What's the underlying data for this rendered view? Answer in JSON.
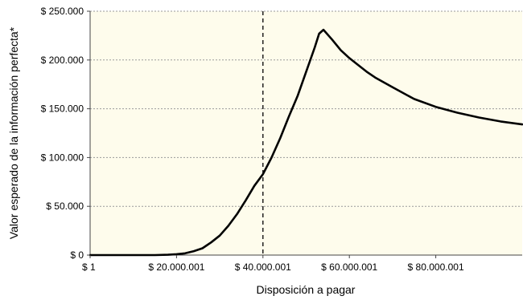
{
  "chart_data": {
    "type": "line",
    "title": "",
    "xlabel": "Disposición a pagar",
    "ylabel": "Valor esperado de la información perfecta*",
    "xlim": [
      1,
      100000001
    ],
    "ylim": [
      0,
      250000
    ],
    "grid": {
      "horizontal": true,
      "vertical": false
    },
    "x_ticks": [
      {
        "value": 1,
        "label": "$ 1"
      },
      {
        "value": 20000001,
        "label": "$ 20.000.001"
      },
      {
        "value": 40000001,
        "label": "$ 40.000.001"
      },
      {
        "value": 60000001,
        "label": "$ 60.000.001"
      },
      {
        "value": 80000001,
        "label": "$ 80.000.001"
      }
    ],
    "y_ticks": [
      {
        "value": 0,
        "label": "$ 0"
      },
      {
        "value": 50000,
        "label": "$ 50.000"
      },
      {
        "value": 100000,
        "label": "$ 100.000"
      },
      {
        "value": 150000,
        "label": "$ 150.000"
      },
      {
        "value": 200000,
        "label": "$ 200.000"
      },
      {
        "value": 250000,
        "label": "$ 250.000"
      }
    ],
    "reference_line": {
      "x": 40000001,
      "style": "dashed"
    },
    "series": [
      {
        "x": [
          1,
          15000000,
          18000000,
          20000000,
          22000000,
          24000000,
          26000000,
          28000000,
          30000000,
          32000000,
          34000000,
          36000000,
          38000000,
          40000001,
          42000000,
          44000000,
          46000000,
          48000000,
          50000000,
          52000000,
          53000000,
          54000000,
          56000000,
          58000000,
          60000000,
          62000000,
          64000000,
          66000000,
          70000000,
          75000000,
          80000000,
          85000000,
          90000000,
          95000000,
          100000001
        ],
        "y": [
          0,
          0,
          300,
          900,
          1800,
          4000,
          7000,
          13000,
          20000,
          30000,
          42000,
          56000,
          71000,
          83000,
          100000,
          120000,
          142000,
          163000,
          188000,
          213000,
          227000,
          231000,
          221000,
          210000,
          202000,
          195000,
          188000,
          182000,
          172000,
          160000,
          152000,
          146000,
          141000,
          137000,
          134000
        ]
      }
    ]
  }
}
